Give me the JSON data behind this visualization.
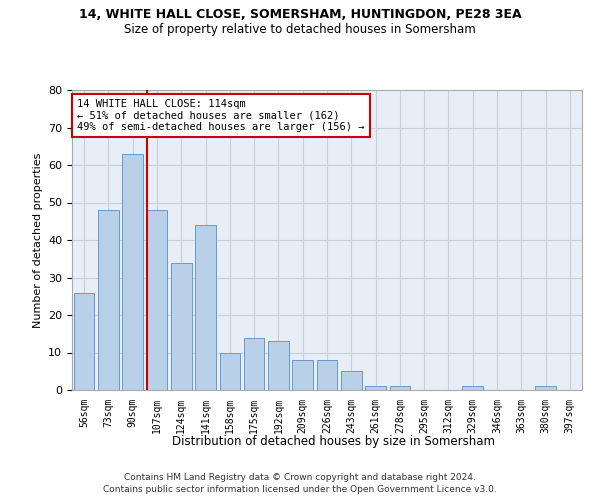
{
  "title1": "14, WHITE HALL CLOSE, SOMERSHAM, HUNTINGDON, PE28 3EA",
  "title2": "Size of property relative to detached houses in Somersham",
  "xlabel": "Distribution of detached houses by size in Somersham",
  "ylabel": "Number of detached properties",
  "categories": [
    "56sqm",
    "73sqm",
    "90sqm",
    "107sqm",
    "124sqm",
    "141sqm",
    "158sqm",
    "175sqm",
    "192sqm",
    "209sqm",
    "226sqm",
    "243sqm",
    "261sqm",
    "278sqm",
    "295sqm",
    "312sqm",
    "329sqm",
    "346sqm",
    "363sqm",
    "380sqm",
    "397sqm"
  ],
  "values": [
    26,
    48,
    63,
    48,
    34,
    44,
    10,
    14,
    13,
    8,
    8,
    5,
    1,
    1,
    0,
    0,
    1,
    0,
    0,
    1,
    0
  ],
  "bar_color": "#b8d0e8",
  "bar_edge_color": "#6699cc",
  "annotation_line1": "14 WHITE HALL CLOSE: 114sqm",
  "annotation_line2": "← 51% of detached houses are smaller (162)",
  "annotation_line3": "49% of semi-detached houses are larger (156) →",
  "vline_color": "#cc0000",
  "box_color": "#cc0000",
  "ylim": [
    0,
    80
  ],
  "yticks": [
    0,
    10,
    20,
    30,
    40,
    50,
    60,
    70,
    80
  ],
  "grid_color": "#c8d0dc",
  "bg_color": "#e8eef8",
  "footer1": "Contains HM Land Registry data © Crown copyright and database right 2024.",
  "footer2": "Contains public sector information licensed under the Open Government Licence v3.0."
}
